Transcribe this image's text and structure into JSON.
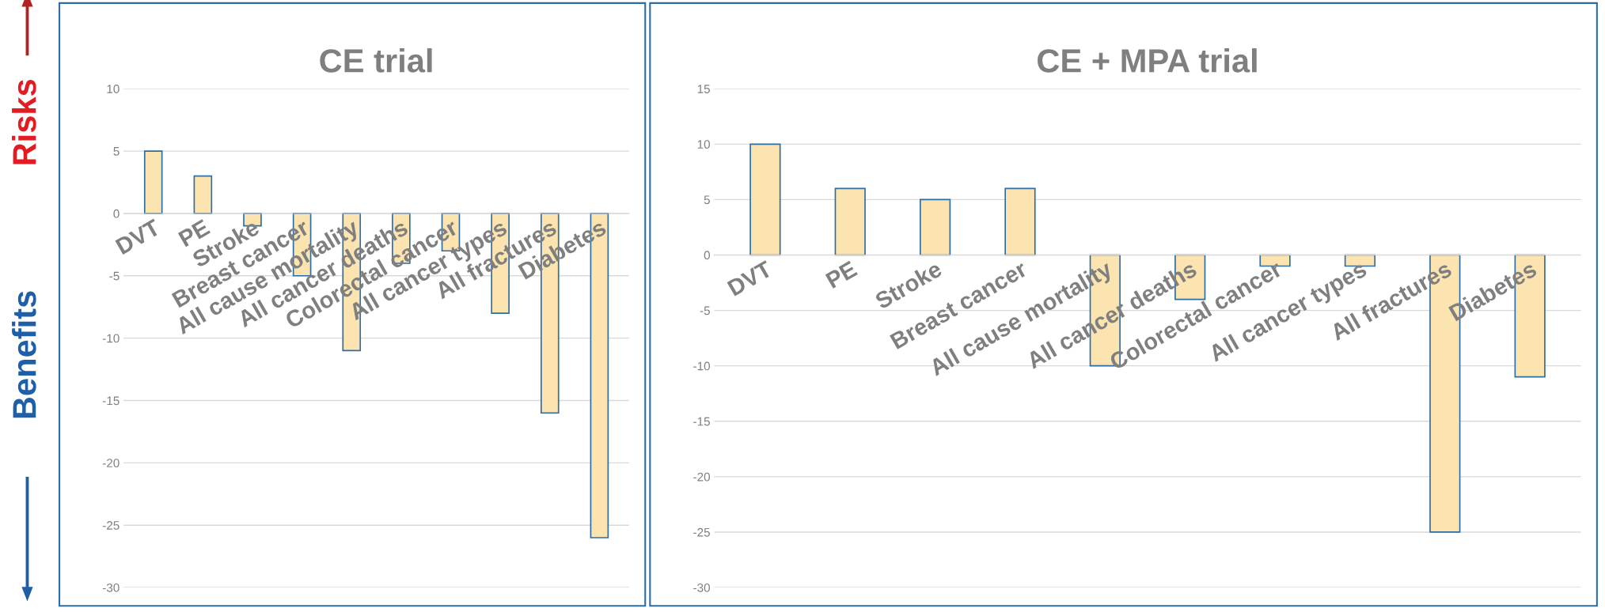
{
  "chart_data": [
    {
      "type": "bar",
      "title": "CE trial",
      "annotations": [
        "Risks",
        "Benefits"
      ],
      "categories": [
        "DVT",
        "PE",
        "Stroke",
        "Breast cancer",
        "All cause mortality",
        "All cancer deaths",
        "Colorectal cancer",
        "All cancer types",
        "All fractures",
        "Diabetes"
      ],
      "values": [
        5,
        3,
        -1,
        -5,
        -11,
        -4,
        -3,
        -8,
        -16,
        -26
      ],
      "color": "#fce4b0",
      "ylim": [
        -30,
        10
      ],
      "yticks": [
        -30,
        -25,
        -20,
        -15,
        -10,
        -5,
        0,
        5,
        10
      ],
      "grid": "y"
    },
    {
      "type": "bar",
      "title": "CE + MPA trial",
      "categories": [
        "DVT",
        "PE",
        "Stroke",
        "Breast cancer",
        "All cause mortality",
        "All cancer deaths",
        "Colorectal cancer",
        "All cancer types",
        "All fractures",
        "Diabetes"
      ],
      "values": [
        10,
        6,
        5,
        6,
        -10,
        -4,
        -1,
        -1,
        -25,
        -11
      ],
      "color": "#fce4b0",
      "ylim": [
        -30,
        15
      ],
      "yticks": [
        -30,
        -25,
        -20,
        -15,
        -10,
        -5,
        0,
        5,
        10,
        15
      ],
      "grid": "y"
    }
  ]
}
